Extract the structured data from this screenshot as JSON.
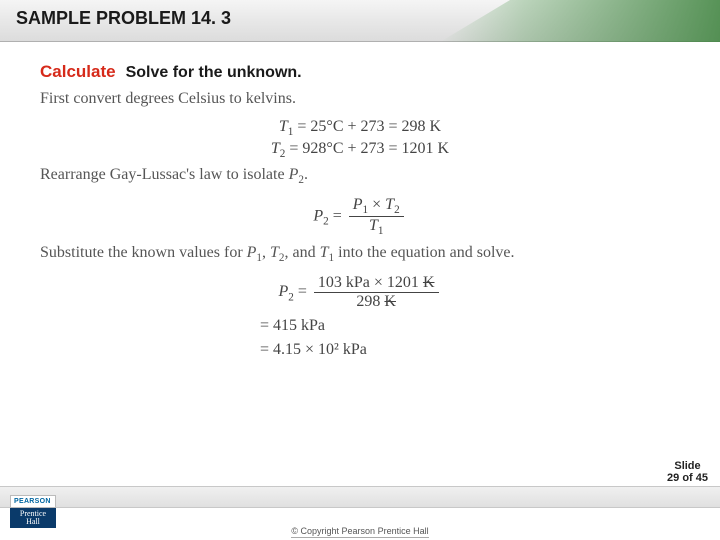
{
  "header": {
    "title": "SAMPLE PROBLEM 14. 3"
  },
  "content": {
    "calculate_label": "Calculate",
    "solve_label": "Solve for the unknown.",
    "line1": "First convert degrees Celsius to kelvins.",
    "eq1_a": "T",
    "eq1_sub": "1",
    "eq1_rest": " = 25°C + 273 = 298 K",
    "eq2_a": "T",
    "eq2_sub": "2",
    "eq2_rest": " = 928°C + 273 = 1201 K",
    "line2_a": "Rearrange Gay-Lussac's law to isolate ",
    "line2_var": "P",
    "line2_sub": "2",
    "line2_b": ".",
    "frac_lhs_var": "P",
    "frac_lhs_sub": "2",
    "frac_eq": " = ",
    "frac_num_a": "P",
    "frac_num_a_sub": "1",
    "frac_num_times": " × ",
    "frac_num_b": "T",
    "frac_num_b_sub": "2",
    "frac_den_a": "T",
    "frac_den_a_sub": "1",
    "line3_a": "Substitute the known values for ",
    "line3_v1": "P",
    "line3_v1s": "1",
    "line3_c1": ", ",
    "line3_v2": "T",
    "line3_v2s": "2",
    "line3_c2": ", and ",
    "line3_v3": "T",
    "line3_v3s": "1",
    "line3_b": " into the equation and solve.",
    "calc_lhs_var": "P",
    "calc_lhs_sub": "2",
    "calc_num_a": "103 kPa × 1201 ",
    "calc_num_strike": "K",
    "calc_den_a": "298 ",
    "calc_den_strike": "K",
    "result1": "= 415 kPa",
    "result2": "= 4.15 × 10² kPa"
  },
  "footer": {
    "slide_line1": "Slide",
    "slide_line2": "29 of 45",
    "pearson_top": "PEARSON",
    "pearson_bottom1": "Prentice",
    "pearson_bottom2": "Hall",
    "copyright": "© Copyright Pearson Prentice Hall"
  }
}
